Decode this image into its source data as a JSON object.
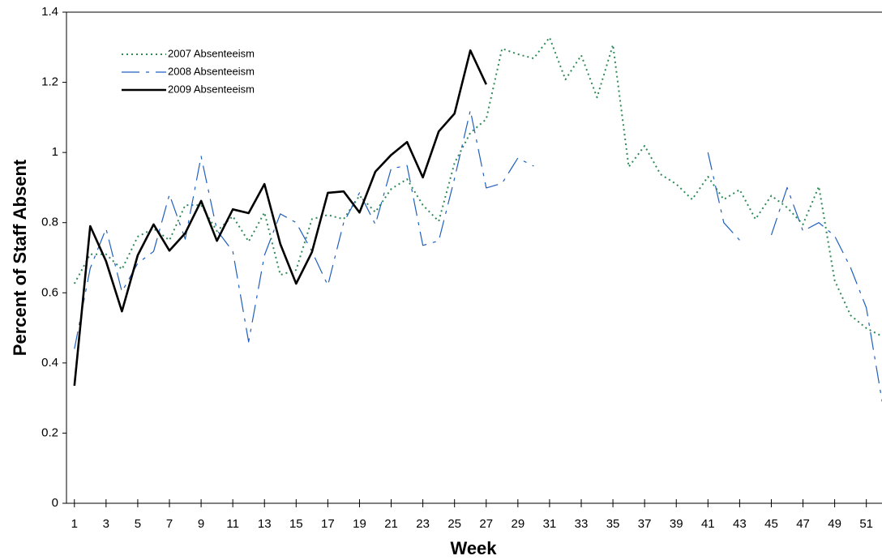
{
  "chart_data": {
    "type": "line",
    "x_label": "Week",
    "y_label": "Percent of Staff Absent",
    "x": [
      1,
      2,
      3,
      4,
      5,
      6,
      7,
      8,
      9,
      10,
      11,
      12,
      13,
      14,
      15,
      16,
      17,
      18,
      19,
      20,
      21,
      22,
      23,
      24,
      25,
      26,
      27,
      28,
      29,
      30,
      31,
      32,
      33,
      34,
      35,
      36,
      37,
      38,
      39,
      40,
      41,
      42,
      43,
      44,
      45,
      46,
      47,
      48,
      49,
      50,
      51,
      52
    ],
    "xlim": [
      0.5,
      52.5
    ],
    "xticks": [
      1,
      3,
      5,
      7,
      9,
      11,
      13,
      15,
      17,
      19,
      21,
      23,
      25,
      27,
      29,
      31,
      33,
      35,
      37,
      39,
      41,
      43,
      45,
      47,
      49,
      51
    ],
    "ylim": [
      0,
      1.4
    ],
    "yticks": [
      0,
      0.2,
      0.4,
      0.6,
      0.8,
      1,
      1.2,
      1.4
    ],
    "legend": "top-left",
    "series": [
      {
        "name": "2007 Absenteeism",
        "color": "#2e8b57",
        "style": "dotted",
        "values": [
          0.626,
          0.71,
          0.71,
          0.667,
          0.76,
          0.783,
          0.75,
          0.85,
          0.85,
          0.776,
          0.818,
          0.746,
          0.829,
          0.651,
          0.665,
          0.81,
          0.822,
          0.81,
          0.877,
          0.83,
          0.896,
          0.924,
          0.85,
          0.804,
          0.97,
          1.056,
          1.095,
          1.296,
          1.28,
          1.268,
          1.328,
          1.208,
          1.277,
          1.157,
          1.307,
          0.959,
          1.019,
          0.938,
          0.91,
          0.866,
          0.931,
          0.866,
          0.894,
          0.81,
          0.877,
          0.843,
          0.795,
          0.903,
          0.635,
          0.536,
          0.499,
          0.476
        ]
      },
      {
        "name": "2008 Absenteeism",
        "color": "#1f5fbf",
        "style": "dashed",
        "values": [
          0.44,
          0.67,
          0.783,
          0.603,
          0.684,
          0.718,
          0.88,
          0.753,
          0.989,
          0.778,
          0.718,
          0.46,
          0.707,
          0.825,
          0.8,
          0.718,
          0.621,
          0.8,
          0.885,
          0.795,
          0.954,
          0.963,
          0.735,
          0.748,
          0.926,
          1.12,
          0.899,
          0.912,
          0.984,
          0.961,
          null,
          null,
          null,
          null,
          null,
          null,
          null,
          null,
          null,
          null,
          1.0,
          0.8,
          0.75,
          null,
          0.765,
          0.9,
          0.776,
          0.8,
          0.762,
          0.672,
          0.557,
          0.29
        ]
      },
      {
        "name": "2009 Absenteeism",
        "color": "#000000",
        "style": "solid",
        "values": [
          0.335,
          0.79,
          0.69,
          0.547,
          0.707,
          0.795,
          0.72,
          0.77,
          0.862,
          0.748,
          0.838,
          0.827,
          0.91,
          0.739,
          0.626,
          0.716,
          0.885,
          0.889,
          0.829,
          0.945,
          0.993,
          1.03,
          0.929,
          1.06,
          1.111,
          1.291,
          1.194,
          null,
          null,
          null,
          null,
          null,
          null,
          null,
          null,
          null,
          null,
          null,
          null,
          null,
          null,
          null,
          null,
          null,
          null,
          null,
          null,
          null,
          null,
          null,
          null,
          null
        ]
      }
    ]
  }
}
